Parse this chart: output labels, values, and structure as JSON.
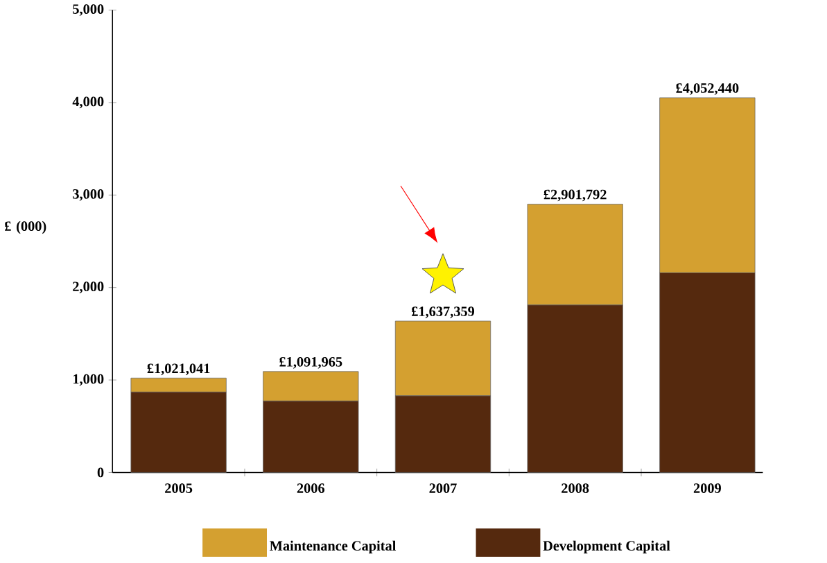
{
  "chart_data": {
    "type": "bar",
    "stacked": true,
    "ylabel": "£ (000)",
    "categories": [
      "2005",
      "2006",
      "2007",
      "2008",
      "2009"
    ],
    "series": [
      {
        "name": "Development Capital",
        "color": "#55290e",
        "values": [
          870,
          773,
          829,
          1811,
          2159
        ]
      },
      {
        "name": "Maintenance Capital",
        "color": "#d4a030",
        "values": [
          151.041,
          318.965,
          808.359,
          1090.792,
          1893.44
        ]
      }
    ],
    "totals": [
      "£1,021,041",
      "£1,091,965",
      "£1,637,359",
      "£2,901,792",
      "£4,052,440"
    ],
    "ylim": [
      0,
      5000
    ],
    "yticks": [
      0,
      {
        "value": 1000,
        "label": "1,000"
      },
      {
        "value": 2000,
        "label": "2,000"
      },
      {
        "value": 3000,
        "label": "3,000"
      },
      {
        "value": 4000,
        "label": "4,000"
      },
      {
        "value": 5000,
        "label": "5,000"
      }
    ],
    "grid": false,
    "legend": "bottom"
  }
}
